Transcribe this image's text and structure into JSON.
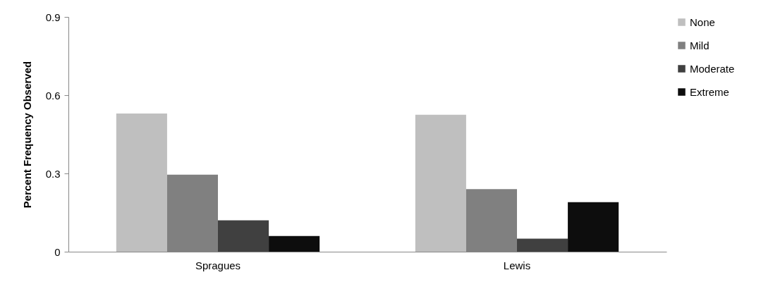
{
  "chart_data": {
    "type": "bar",
    "ylabel": "Percent Frequency Observed",
    "categories": [
      "Spragues",
      "Lewis"
    ],
    "series": [
      {
        "name": "None",
        "color": "#bfbfbf",
        "values": [
          0.53,
          0.525
        ]
      },
      {
        "name": "Mild",
        "color": "#808080",
        "values": [
          0.295,
          0.24
        ]
      },
      {
        "name": "Moderate",
        "color": "#404040",
        "values": [
          0.12,
          0.05
        ]
      },
      {
        "name": "Extreme",
        "color": "#0d0d0d",
        "values": [
          0.06,
          0.19
        ]
      }
    ],
    "ylim": [
      0,
      0.9
    ],
    "yticks": [
      0,
      0.3,
      0.6,
      0.9
    ],
    "grid": false,
    "legend": "right"
  }
}
